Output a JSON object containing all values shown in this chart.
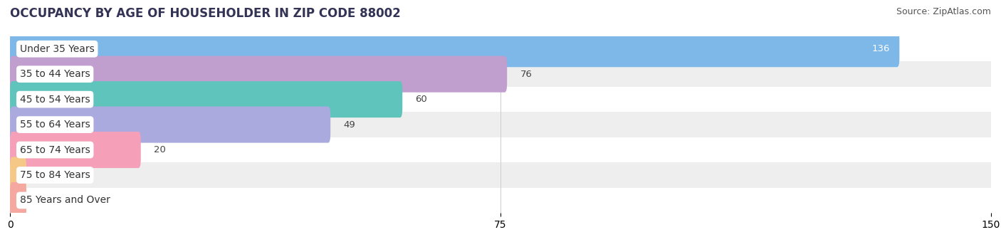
{
  "title": "OCCUPANCY BY AGE OF HOUSEHOLDER IN ZIP CODE 88002",
  "source": "Source: ZipAtlas.com",
  "categories": [
    "Under 35 Years",
    "35 to 44 Years",
    "45 to 54 Years",
    "55 to 64 Years",
    "65 to 74 Years",
    "75 to 84 Years",
    "85 Years and Over"
  ],
  "values": [
    136,
    76,
    60,
    49,
    20,
    0,
    0
  ],
  "bar_colors": [
    "#7db8e8",
    "#c09ece",
    "#5ec4bc",
    "#aaaade",
    "#f5a0b8",
    "#f5c888",
    "#f5a8a0"
  ],
  "xlim": [
    0,
    150
  ],
  "xticks": [
    0,
    75,
    150
  ],
  "bar_height": 0.72,
  "row_bg_colors": [
    "#ffffff",
    "#eeeeee"
  ],
  "title_fontsize": 12,
  "label_fontsize": 10,
  "value_fontsize": 9.5,
  "source_fontsize": 9,
  "fig_bg": "#f5f5f5"
}
